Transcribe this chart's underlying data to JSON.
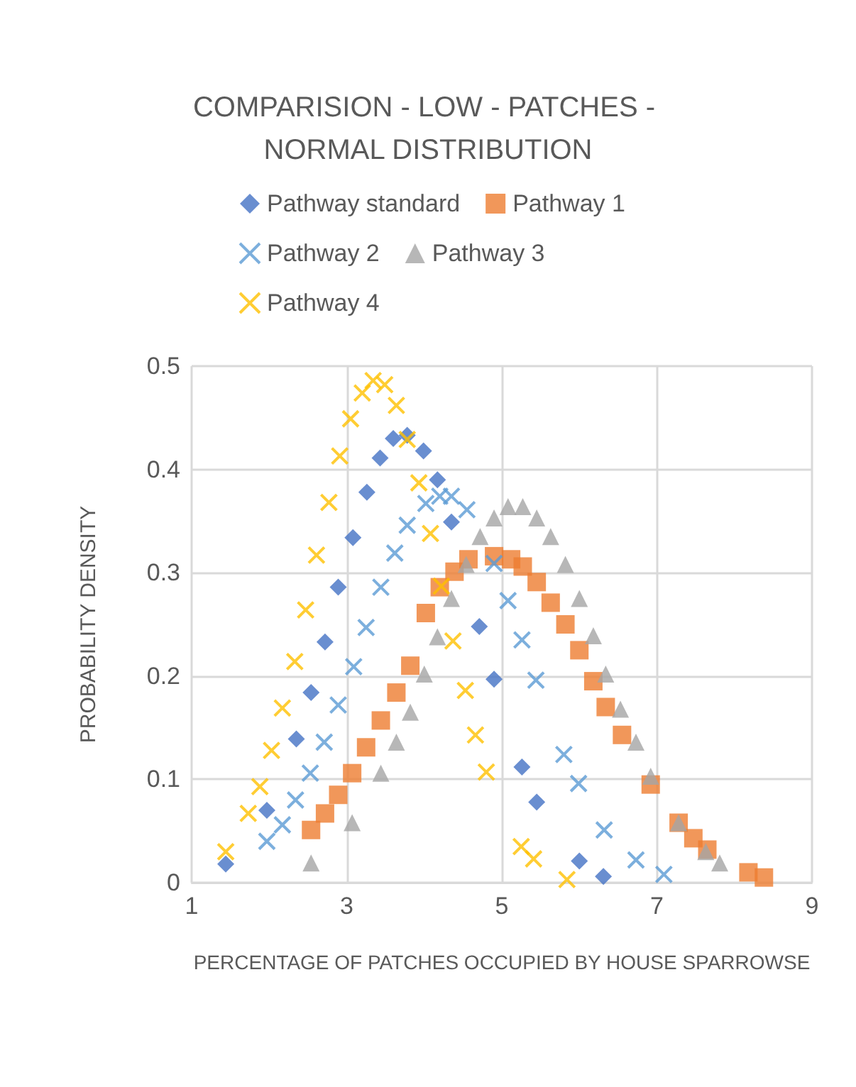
{
  "chart_data": {
    "type": "scatter",
    "title": "COMPARISION - LOW - PATCHES - NORMAL DISTRIBUTION",
    "xlabel": "PERCENTAGE OF PATCHES OCCUPIED BY HOUSE SPARROWSE",
    "ylabel": "PROBABILITY DENSITY",
    "xlim": [
      1,
      9
    ],
    "xticks": [
      1,
      3,
      5,
      7,
      9
    ],
    "ylim": [
      0,
      0.5
    ],
    "yticks": [
      0,
      0.1,
      0.2,
      0.3,
      0.4,
      0.5
    ],
    "grid": true,
    "legend": "top",
    "series": [
      {
        "name": "Pathway standard",
        "color": "#4472c4",
        "marker": "diamond",
        "x": [
          1.44,
          1.97,
          2.35,
          2.54,
          2.72,
          2.89,
          3.08,
          3.26,
          3.43,
          3.6,
          3.78,
          3.99,
          4.17,
          4.35,
          4.71,
          4.9,
          5.26,
          5.45,
          6.0,
          6.31
        ],
        "values": [
          0.018,
          0.07,
          0.139,
          0.184,
          0.233,
          0.286,
          0.334,
          0.378,
          0.411,
          0.43,
          0.433,
          0.418,
          0.39,
          0.349,
          0.248,
          0.197,
          0.112,
          0.078,
          0.021,
          0.006
        ]
      },
      {
        "name": "Pathway 1",
        "color": "#ed7d31",
        "marker": "square",
        "x": [
          2.54,
          2.72,
          2.89,
          3.07,
          3.25,
          3.44,
          3.64,
          3.82,
          4.02,
          4.2,
          4.39,
          4.57,
          4.9,
          5.12,
          5.27,
          5.45,
          5.63,
          5.82,
          6.0,
          6.18,
          6.34,
          6.55,
          6.92,
          7.28,
          7.47,
          7.65,
          8.18,
          8.38
        ],
        "values": [
          0.051,
          0.067,
          0.085,
          0.106,
          0.131,
          0.157,
          0.184,
          0.21,
          0.261,
          0.286,
          0.301,
          0.313,
          0.316,
          0.313,
          0.306,
          0.291,
          0.271,
          0.25,
          0.225,
          0.195,
          0.17,
          0.143,
          0.095,
          0.058,
          0.043,
          0.032,
          0.01,
          0.005
        ]
      },
      {
        "name": "Pathway 2",
        "color": "#5b9bd5",
        "marker": "cross",
        "x": [
          1.97,
          2.17,
          2.34,
          2.53,
          2.71,
          2.89,
          3.09,
          3.25,
          3.44,
          3.62,
          3.78,
          4.02,
          4.2,
          4.35,
          4.55,
          4.9,
          5.08,
          5.26,
          5.44,
          5.8,
          5.99,
          6.32,
          6.73,
          7.09
        ],
        "values": [
          0.04,
          0.056,
          0.08,
          0.106,
          0.136,
          0.172,
          0.209,
          0.247,
          0.286,
          0.319,
          0.346,
          0.367,
          0.374,
          0.374,
          0.361,
          0.309,
          0.273,
          0.235,
          0.196,
          0.124,
          0.096,
          0.051,
          0.022,
          0.008
        ]
      },
      {
        "name": "Pathway 3",
        "color": "#a5a5a5",
        "marker": "triangle",
        "x": [
          2.54,
          3.07,
          3.44,
          3.64,
          3.82,
          4.0,
          4.17,
          4.35,
          4.54,
          4.72,
          4.9,
          5.08,
          5.27,
          5.45,
          5.63,
          5.82,
          6.0,
          6.18,
          6.34,
          6.53,
          6.73,
          6.92,
          7.28,
          7.63,
          7.81
        ],
        "values": [
          0.019,
          0.058,
          0.106,
          0.136,
          0.165,
          0.202,
          0.238,
          0.275,
          0.308,
          0.335,
          0.353,
          0.364,
          0.364,
          0.353,
          0.335,
          0.308,
          0.275,
          0.239,
          0.202,
          0.168,
          0.136,
          0.103,
          0.058,
          0.03,
          0.019
        ]
      },
      {
        "name": "Pathway 4",
        "color": "#ffc000",
        "marker": "cross",
        "x": [
          1.44,
          1.73,
          1.88,
          2.03,
          2.17,
          2.33,
          2.47,
          2.61,
          2.77,
          2.91,
          3.05,
          3.2,
          3.34,
          3.49,
          3.64,
          3.78,
          3.93,
          4.08,
          4.22,
          4.37,
          4.53,
          4.66,
          4.8,
          5.25,
          5.41,
          5.84
        ],
        "values": [
          0.03,
          0.067,
          0.093,
          0.128,
          0.169,
          0.214,
          0.264,
          0.317,
          0.368,
          0.413,
          0.449,
          0.474,
          0.486,
          0.482,
          0.462,
          0.429,
          0.387,
          0.338,
          0.287,
          0.234,
          0.186,
          0.143,
          0.107,
          0.035,
          0.023,
          0.003
        ]
      }
    ]
  }
}
